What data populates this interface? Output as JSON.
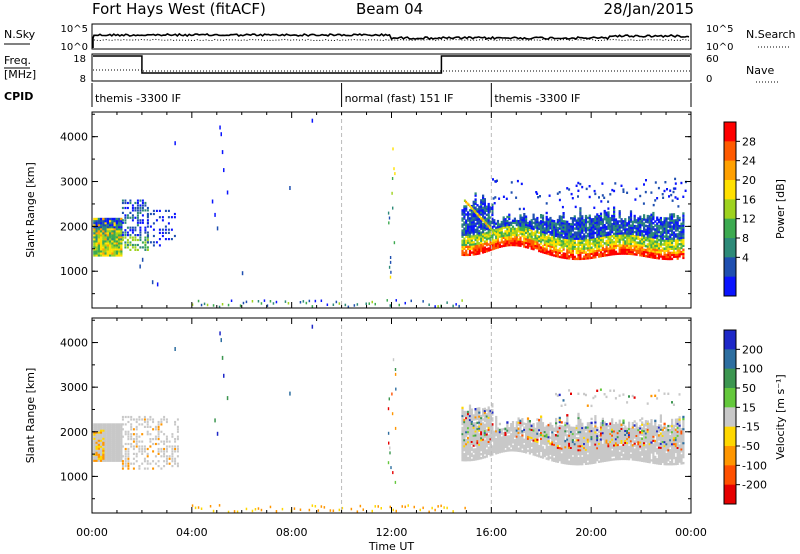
{
  "header": {
    "station": "Fort Hays West (fitACF)",
    "beam": "Beam 04",
    "date": "28/Jan/2015"
  },
  "strip_labels": {
    "nsky": "N.Sky",
    "nsky_ticks": [
      "10^5",
      "10^0"
    ],
    "nsearch": "N.Search",
    "nsearch_ticks": [
      "10^5",
      "10^0"
    ],
    "freq": "Freq.",
    "freq_unit": "[MHz]",
    "freq_ticks": [
      "18",
      "8"
    ],
    "nave": "Nave",
    "nave_ticks": [
      "60",
      "0"
    ],
    "cpid": "CPID"
  },
  "cpid_segments": [
    {
      "label": "themis -3300 IF",
      "start_hr": 0,
      "end_hr": 10
    },
    {
      "label": "normal (fast) 151 IF",
      "start_hr": 10,
      "end_hr": 16
    },
    {
      "label": "themis -3300 IF",
      "start_hr": 16,
      "end_hr": 24
    }
  ],
  "chart_data": [
    {
      "type": "heatmap",
      "name": "power-panel",
      "ylabel": "Slant Range [km]",
      "yticks": [
        "4000",
        "3000",
        "2000",
        "1000"
      ],
      "ytick_values": [
        4000,
        3000,
        2000,
        1000
      ],
      "ylim": [
        180,
        4550
      ],
      "xlim": [
        0,
        24
      ],
      "colorbar": {
        "label": "Power [dB]",
        "ticks": [
          "28",
          "24",
          "20",
          "16",
          "12",
          "8",
          "4"
        ],
        "colors": [
          "#ff0000",
          "#ff5a00",
          "#ffa000",
          "#ffe000",
          "#9ed21e",
          "#3caa50",
          "#2d8a78",
          "#1f4fb0",
          "#0a14ff"
        ]
      }
    },
    {
      "type": "heatmap",
      "name": "velocity-panel",
      "ylabel": "Slant Range [km]",
      "yticks": [
        "4000",
        "3000",
        "2000",
        "1000"
      ],
      "ytick_values": [
        4000,
        3000,
        2000,
        1000
      ],
      "ylim": [
        180,
        4550
      ],
      "xlim": [
        0,
        24
      ],
      "xlabel": "Time UT",
      "xticks": [
        "00:00",
        "04:00",
        "08:00",
        "12:00",
        "16:00",
        "20:00",
        "00:00"
      ],
      "xtick_hours": [
        0,
        4,
        8,
        12,
        16,
        20,
        24
      ],
      "colorbar": {
        "label": "Velocity [m s⁻¹]",
        "ticks": [
          "200",
          "100",
          "50",
          "15",
          "-15",
          "-50",
          "-100",
          "-200"
        ],
        "colors": [
          "#1e28c8",
          "#2d6ea0",
          "#3c9650",
          "#64c83c",
          "#c8c8c8",
          "#ffd700",
          "#ff9600",
          "#ff5000",
          "#e60000"
        ]
      }
    }
  ]
}
